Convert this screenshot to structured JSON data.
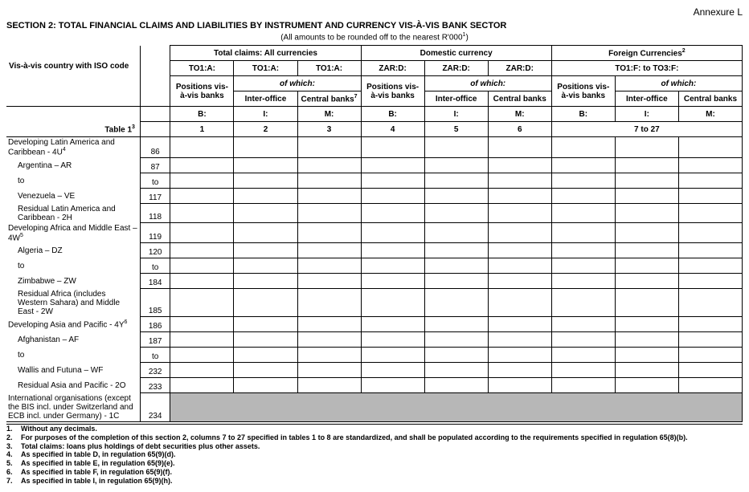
{
  "annexure": "Annexure L",
  "section_title": "SECTION 2: TOTAL FINANCIAL CLAIMS AND LIABILITIES BY INSTRUMENT AND CURRENCY VIS-À-VIS BANK SECTOR",
  "subtitle_prefix": "(All amounts to be rounded off to the nearest R'000",
  "subtitle_sup": "1",
  "subtitle_suffix": ")",
  "left_header": "Vis-à-vis country with  ISO code",
  "table_ref": "Table 1",
  "table_ref_sup": "3",
  "group_headers": {
    "total": "Total claims: All currencies",
    "domestic": "Domestic currency",
    "foreign": "Foreign Currencies",
    "foreign_sup": "2"
  },
  "sub_headers": {
    "to1a": "TO1:A:",
    "zard": "ZAR:D:",
    "to1f_to3f": "TO1:F: to TO3:F:"
  },
  "pos_header": "Positions vis-à-vis banks",
  "of_which": "of which:",
  "inter_office": "Inter-office",
  "central_banks": "Central banks",
  "central_banks_sup": "7",
  "letter_headers": {
    "b": "B:",
    "i": "I:",
    "m": "M:"
  },
  "col_nums": {
    "c1": "1",
    "c2": "2",
    "c3": "3",
    "c4": "4",
    "c5": "5",
    "c6": "6",
    "c7_27": "7 to 27"
  },
  "rows": [
    {
      "label": "Developing Latin America and Caribbean - 4U",
      "sup": "4",
      "code": "86",
      "indent": false,
      "multiline": true
    },
    {
      "label": "Argentina – AR",
      "code": "87",
      "indent": true
    },
    {
      "label": "to",
      "code": "to",
      "indent": true
    },
    {
      "label": "Venezuela – VE",
      "code": "117",
      "indent": true
    },
    {
      "label": "Residual Latin America and Caribbean - 2H",
      "code": "118",
      "indent": true,
      "multiline": true
    },
    {
      "label": "Developing Africa and Middle East – 4W",
      "sup": "5",
      "code": "119",
      "indent": false,
      "multiline": true
    },
    {
      "label": "Algeria – DZ",
      "code": "120",
      "indent": true
    },
    {
      "label": "to",
      "code": "to",
      "indent": true
    },
    {
      "label": "Zimbabwe – ZW",
      "code": "184",
      "indent": true
    },
    {
      "label": "Residual Africa (includes Western Sahara) and Middle East - 2W",
      "code": "185",
      "indent": true,
      "multiline": true
    },
    {
      "label": "Developing Asia and Pacific - 4Y",
      "sup": "6",
      "code": "186",
      "indent": false
    },
    {
      "label": "Afghanistan – AF",
      "code": "187",
      "indent": true
    },
    {
      "label": "to",
      "code": "to",
      "indent": true
    },
    {
      "label": "Wallis and Futuna – WF",
      "code": "232",
      "indent": true
    },
    {
      "label": "Residual Asia and Pacific - 2O",
      "code": "233",
      "indent": true
    },
    {
      "label": "International organisations (except the BIS incl. under Switzerland and ECB incl. under Germany) - 1C",
      "code": "234",
      "indent": false,
      "shaded": true,
      "multiline": true
    }
  ],
  "footnotes": [
    {
      "num": "1.",
      "text": "Without any decimals."
    },
    {
      "num": "2.",
      "text": "For purposes of the completion of this section 2, columns 7 to 27 specified in tables 1 to 8 are standardized, and shall be populated according to the requirements specified in regulation 65(8)(b)."
    },
    {
      "num": "3.",
      "text": "Total claims: loans plus holdings of debt securities plus other assets."
    },
    {
      "num": "4.",
      "text": "As specified in table D, in regulation 65(9)(d)."
    },
    {
      "num": "5.",
      "text": "As specified in table E, in regulation 65(9)(e)."
    },
    {
      "num": "6.",
      "text": "As specified in table F, in regulation 65(9)(f)."
    },
    {
      "num": "7.",
      "text": "As specified in table I, in regulation 65(9)(h)."
    }
  ]
}
